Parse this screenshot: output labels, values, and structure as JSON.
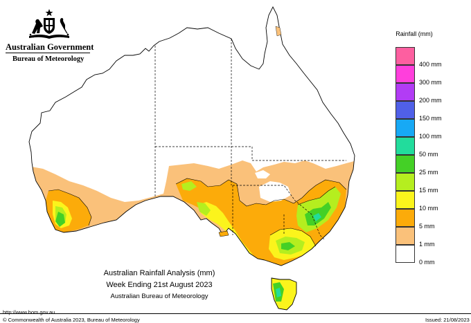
{
  "logo": {
    "government": "Australian Government",
    "agency": "Bureau of Meteorology",
    "crest_icon": "coat-of-arms-icon"
  },
  "legend": {
    "title": "Rainfall (mm)",
    "items": [
      {
        "label": "",
        "color": "#fd5fa0"
      },
      {
        "label": "400 mm",
        "color": "#ff3fdc"
      },
      {
        "label": "300 mm",
        "color": "#b23cf5"
      },
      {
        "label": "200 mm",
        "color": "#5060e8"
      },
      {
        "label": "150 mm",
        "color": "#17a9f5"
      },
      {
        "label": "100 mm",
        "color": "#22dc9c"
      },
      {
        "label": "50 mm",
        "color": "#44d026"
      },
      {
        "label": "25 mm",
        "color": "#b5ee1f"
      },
      {
        "label": "15 mm",
        "color": "#fbf41c"
      },
      {
        "label": "10 mm",
        "color": "#fcab0a"
      },
      {
        "label": "5 mm",
        "color": "#fac17a"
      },
      {
        "label": "1 mm",
        "color": "#ffffff"
      },
      {
        "label": "0 mm",
        "color": null
      }
    ]
  },
  "map": {
    "region": "Australia",
    "colors": {
      "rain_1mm": "#fac17a",
      "rain_5mm": "#fcab0a",
      "rain_10mm": "#fbf41c",
      "rain_15mm": "#b5ee1f",
      "rain_25mm": "#44d026",
      "rain_50mm": "#22dc9c",
      "outline": "#000000"
    }
  },
  "caption": {
    "line1": "Australian Rainfall Analysis (mm)",
    "line2": "Week Ending 21st August 2023",
    "line3": "Australian Bureau of Meteorology"
  },
  "footer": {
    "url": "http://www.bom.gov.au",
    "copyright": "© Commonwealth of Australia 2023, Bureau of Meteorology",
    "issued": "Issued: 21/08/2023"
  }
}
